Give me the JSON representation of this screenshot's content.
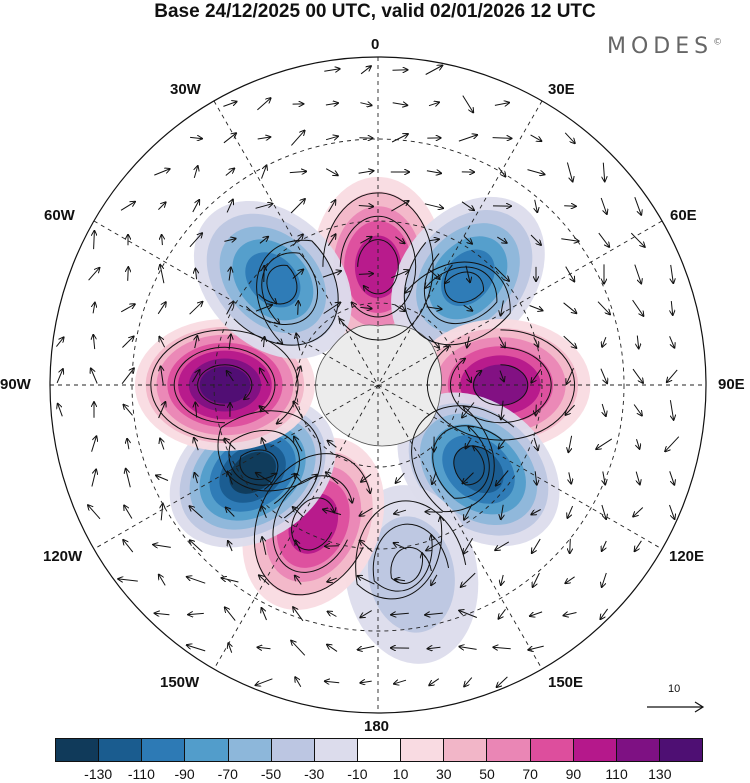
{
  "title": "Base 24/12/2025 00 UTC, valid 02/01/2026 12 UTC",
  "brand": "MODES",
  "brand_mark": "©",
  "longitude_labels": {
    "top": "0",
    "top_right": "30E",
    "right_upper": "60E",
    "right": "90E",
    "right_lower": "120E",
    "bottom_right": "150E",
    "bottom": "180",
    "bottom_left": "150W",
    "left_lower": "120W",
    "left": "90W",
    "left_upper": "60W",
    "top_left": "30W"
  },
  "reference_vector": {
    "value": "10"
  },
  "colorbar": {
    "colors": [
      "#103a5a",
      "#1a5c8f",
      "#2d7ab5",
      "#529dcb",
      "#8db7da",
      "#bcc6e2",
      "#dcdcec",
      "#ffffff",
      "#f9dbe2",
      "#f2b6c8",
      "#ea86b5",
      "#dd4e9d",
      "#b5188b",
      "#7e1183",
      "#4e0f73"
    ],
    "tick_labels": [
      "-130",
      "-110",
      "-90",
      "-70",
      "-50",
      "-30",
      "-10",
      "10",
      "30",
      "50",
      "70",
      "90",
      "110",
      "130"
    ]
  },
  "anomaly_centers": [
    {
      "name": "positive-center-0",
      "lon": 0,
      "lat": -63,
      "value": 95
    },
    {
      "name": "negative-center-40e",
      "lon": 40,
      "lat": -58,
      "value": -85
    },
    {
      "name": "positive-center-90e",
      "lon": 90,
      "lat": -62,
      "value": 110
    },
    {
      "name": "negative-center-130e",
      "lon": 130,
      "lat": -60,
      "value": -105
    },
    {
      "name": "negative-center-170e",
      "lon": 170,
      "lat": -46,
      "value": -35
    },
    {
      "name": "positive-center-155w",
      "lon": -155,
      "lat": -55,
      "value": 100
    },
    {
      "name": "negative-center-125w",
      "lon": -125,
      "lat": -55,
      "value": -125
    },
    {
      "name": "positive-center-90w",
      "lon": -90,
      "lat": -55,
      "value": 125
    },
    {
      "name": "negative-center-45w",
      "lon": -45,
      "lat": -56,
      "value": -100
    }
  ]
}
